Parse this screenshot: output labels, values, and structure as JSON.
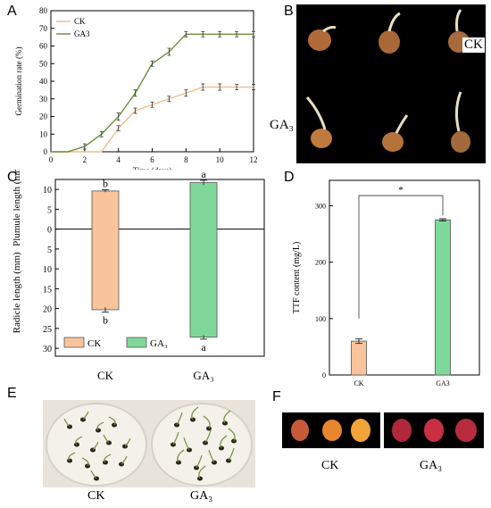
{
  "panels": {
    "A": {
      "letter": "A"
    },
    "B": {
      "letter": "B",
      "row_labels": [
        "CK",
        "GA₃"
      ]
    },
    "C": {
      "letter": "C"
    },
    "D": {
      "letter": "D"
    },
    "E": {
      "letter": "E",
      "captions": [
        "CK",
        "GA₃"
      ]
    },
    "F": {
      "letter": "F",
      "captions": [
        "CK",
        "GA₃"
      ]
    }
  },
  "colors": {
    "ck_line": "#f2b98a",
    "ga3_line": "#6b8f3a",
    "ck_bar": "#f9c49b",
    "ga3_bar": "#7fd89a"
  },
  "chart_data": [
    {
      "id": "A",
      "type": "line",
      "xlabel": "Time (days)",
      "ylabel": "Germination rate (%)",
      "xlim": [
        0,
        12
      ],
      "ylim": [
        0,
        80
      ],
      "xticks": [
        0,
        2,
        4,
        6,
        8,
        10,
        12
      ],
      "yticks": [
        0,
        10,
        20,
        30,
        40,
        50,
        60,
        70,
        80
      ],
      "legend": "top-left",
      "series": [
        {
          "name": "CK",
          "color": "#f2b98a",
          "x": [
            0,
            1,
            2,
            3,
            4,
            5,
            6,
            7,
            8,
            9,
            10,
            11,
            12
          ],
          "y": [
            0,
            0,
            0,
            0,
            13.3,
            23.3,
            26.7,
            30,
            33.3,
            36.7,
            36.7,
            36.7,
            36.7
          ],
          "err": [
            0,
            0,
            0,
            0,
            1.5,
            1.5,
            1.5,
            1.5,
            1.8,
            1.8,
            1.8,
            1.5,
            1.5
          ]
        },
        {
          "name": "GA3",
          "color": "#6b8f3a",
          "x": [
            0,
            1,
            2,
            3,
            4,
            5,
            6,
            7,
            8,
            9,
            10,
            11,
            12
          ],
          "y": [
            0,
            0,
            3,
            10,
            20,
            33.3,
            50,
            56.7,
            66.7,
            66.7,
            66.7,
            66.7,
            66.7
          ],
          "err": [
            0,
            0,
            1.5,
            1.5,
            2,
            1.8,
            1.5,
            2,
            1.5,
            1.5,
            1.5,
            1.5,
            1.5
          ]
        }
      ]
    },
    {
      "id": "C",
      "type": "bar",
      "categories": [
        "CK",
        "GA₃"
      ],
      "ylabel_top": "Plumule length (mm)",
      "ylabel_bottom": "Radicle length (mm)",
      "yticks_top": [
        0,
        5,
        10
      ],
      "yticks_bottom": [
        5,
        10,
        15,
        20,
        25,
        30
      ],
      "ylim": [
        -32,
        12.5
      ],
      "legend": "bottom-left",
      "legend_entries": [
        "CK",
        "GA₃"
      ],
      "plumule": [
        9.6,
        11.7
      ],
      "plumule_err": [
        0.3,
        0.6
      ],
      "radicle": [
        20.3,
        27.2
      ],
      "radicle_err": [
        0.6,
        0.5
      ],
      "letters_top": [
        "b",
        "a"
      ],
      "letters_bottom": [
        "b",
        "a"
      ]
    },
    {
      "id": "D",
      "type": "bar",
      "categories": [
        "CK",
        "GA3"
      ],
      "values": [
        60,
        275
      ],
      "err": [
        4,
        2
      ],
      "ylabel": "TTF content (mg/L)",
      "ylim": [
        0,
        345
      ],
      "yticks": [
        0,
        100,
        200,
        300
      ],
      "significance": "*"
    }
  ]
}
